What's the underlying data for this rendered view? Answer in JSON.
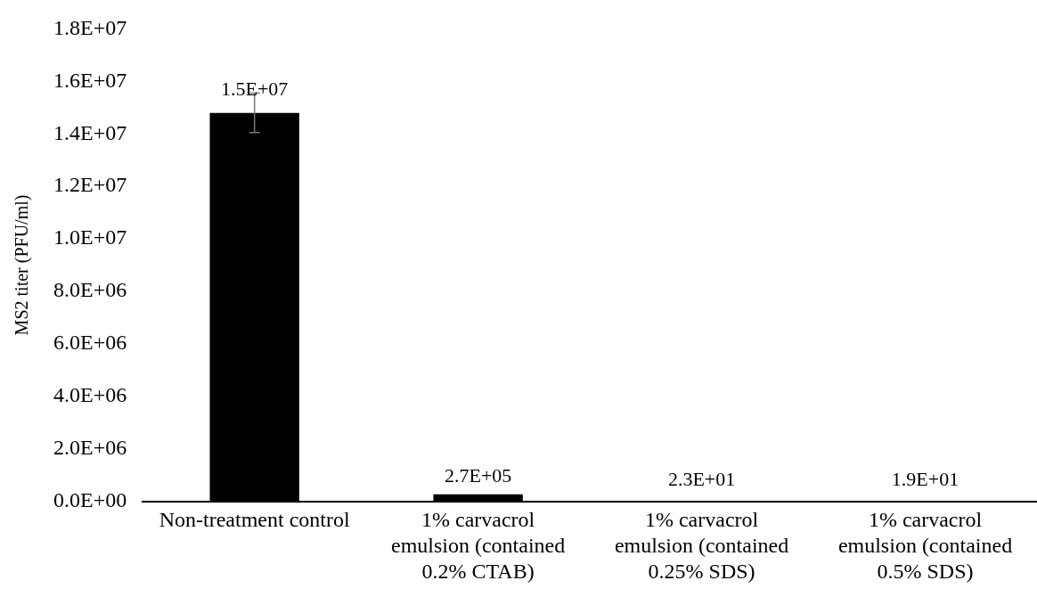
{
  "chart_data": {
    "type": "bar",
    "ylabel": "MS2 titer (PFU/ml)",
    "categories": [
      "Non-treatment control",
      "1% carvacrol emulsion (contained 0.2% CTAB)",
      "1% carvacrol emulsion (contained 0.25% SDS)",
      "1% carvacrol emulsion (contained 0.5% SDS)"
    ],
    "values": [
      14800000,
      270000,
      23,
      19
    ],
    "errors": [
      750000,
      null,
      null,
      null
    ],
    "value_labels": [
      "1.5E+07",
      "2.7E+05",
      "2.3E+01",
      "1.9E+01"
    ],
    "color": "#000000",
    "ylim": [
      0,
      18000000
    ],
    "yticks": [
      {
        "value": 0,
        "label": "0.0E+00"
      },
      {
        "value": 2000000,
        "label": "2.0E+06"
      },
      {
        "value": 4000000,
        "label": "4.0E+06"
      },
      {
        "value": 6000000,
        "label": "6.0E+06"
      },
      {
        "value": 8000000,
        "label": "8.0E+06"
      },
      {
        "value": 10000000,
        "label": "1.0E+07"
      },
      {
        "value": 12000000,
        "label": "1.2E+07"
      },
      {
        "value": 14000000,
        "label": "1.4E+07"
      },
      {
        "value": 16000000,
        "label": "1.6E+07"
      },
      {
        "value": 18000000,
        "label": "1.8E+07"
      }
    ],
    "grid": false,
    "legend": false
  }
}
